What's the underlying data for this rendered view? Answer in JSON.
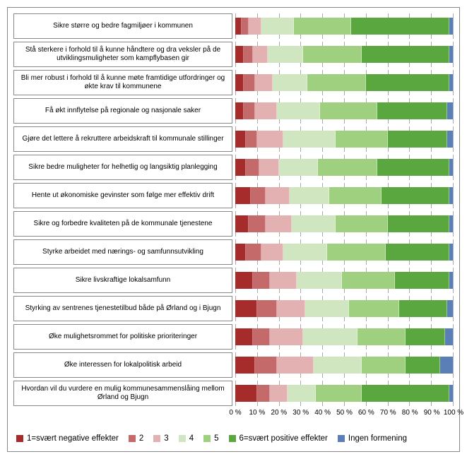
{
  "chart": {
    "type": "stacked-bar-horizontal",
    "xlim": [
      0,
      100
    ],
    "xtick_step": 10,
    "xtick_suffix": " %",
    "grid_color": "#aaaaaa",
    "background_color": "#ffffff",
    "label_fontsize_pt": 10,
    "colors": {
      "c1": "#a62b2b",
      "c2": "#c46a6a",
      "c3": "#e3b1b1",
      "c4": "#cfe6c1",
      "c5": "#9fd080",
      "c6": "#5aa73f",
      "c7": "#5a7fb7"
    },
    "series_order": [
      "c1",
      "c2",
      "c3",
      "c4",
      "c5",
      "c6",
      "c7"
    ],
    "rows": [
      {
        "label": "Sikre større og bedre fagmiljøer i kommunen",
        "values": {
          "c1": 3,
          "c2": 3,
          "c3": 6,
          "c4": 15,
          "c5": 26,
          "c6": 45,
          "c7": 2
        }
      },
      {
        "label": "Stå sterkere i forhold til å kunne håndtere og dra veksler på de utviklingsmuligheter som kampflybasen gir",
        "values": {
          "c1": 4,
          "c2": 4,
          "c3": 7,
          "c4": 16,
          "c5": 27,
          "c6": 40,
          "c7": 2
        }
      },
      {
        "label": "Bli mer robust i forhold til å kunne møte framtidige utfordringer og økte krav til kommunene",
        "values": {
          "c1": 4,
          "c2": 5,
          "c3": 8,
          "c4": 16,
          "c5": 27,
          "c6": 38,
          "c7": 2
        }
      },
      {
        "label": "Få økt innflytelse på regionale og nasjonale saker",
        "values": {
          "c1": 4,
          "c2": 5,
          "c3": 10,
          "c4": 20,
          "c5": 26,
          "c6": 32,
          "c7": 3
        }
      },
      {
        "label": "Gjøre det lettere å rekruttere arbeidskraft til kommunale stillinger",
        "values": {
          "c1": 5,
          "c2": 5,
          "c3": 12,
          "c4": 24,
          "c5": 24,
          "c6": 27,
          "c7": 3
        }
      },
      {
        "label": "Sikre bedre muligheter for helhetlig og langsiktig planlegging",
        "values": {
          "c1": 5,
          "c2": 6,
          "c3": 9,
          "c4": 18,
          "c5": 27,
          "c6": 33,
          "c7": 2
        }
      },
      {
        "label": "Hente ut økonomiske gevinster som følge mer effektiv drift",
        "values": {
          "c1": 7,
          "c2": 7,
          "c3": 11,
          "c4": 18,
          "c5": 24,
          "c6": 31,
          "c7": 2
        }
      },
      {
        "label": "Sikre og forbedre kvaliteten på de kommunale tjenestene",
        "values": {
          "c1": 6,
          "c2": 8,
          "c3": 12,
          "c4": 20,
          "c5": 24,
          "c6": 28,
          "c7": 2
        }
      },
      {
        "label": "Styrke arbeidet med nærings- og samfunnsutvikling",
        "values": {
          "c1": 5,
          "c2": 7,
          "c3": 10,
          "c4": 20,
          "c5": 27,
          "c6": 29,
          "c7": 2
        }
      },
      {
        "label": "Sikre livskraftige lokalsamfunn",
        "values": {
          "c1": 8,
          "c2": 8,
          "c3": 12,
          "c4": 21,
          "c5": 24,
          "c6": 25,
          "c7": 2
        }
      },
      {
        "label": "Styrking av sentrenes tjenestetilbud både på Ørland og i Bjugn",
        "values": {
          "c1": 10,
          "c2": 9,
          "c3": 13,
          "c4": 20,
          "c5": 23,
          "c6": 22,
          "c7": 3
        }
      },
      {
        "label": "Øke mulighetsrommet for politiske prioriteringer",
        "values": {
          "c1": 8,
          "c2": 8,
          "c3": 15,
          "c4": 25,
          "c5": 22,
          "c6": 18,
          "c7": 4
        }
      },
      {
        "label": "Øke interessen for lokalpolitisk arbeid",
        "values": {
          "c1": 9,
          "c2": 10,
          "c3": 17,
          "c4": 22,
          "c5": 20,
          "c6": 16,
          "c7": 6
        }
      },
      {
        "label": "Hvordan vil du vurdere en mulig kommunesammenslåing mellom Ørland og Bjugn",
        "values": {
          "c1": 10,
          "c2": 6,
          "c3": 8,
          "c4": 13,
          "c5": 21,
          "c6": 40,
          "c7": 2
        }
      }
    ],
    "legend": [
      {
        "key": "c1",
        "label": "1=svært negative effekter"
      },
      {
        "key": "c2",
        "label": "2"
      },
      {
        "key": "c3",
        "label": "3"
      },
      {
        "key": "c4",
        "label": "4"
      },
      {
        "key": "c5",
        "label": "5"
      },
      {
        "key": "c6",
        "label": "6=svært positive effekter"
      },
      {
        "key": "c7",
        "label": "Ingen formening"
      }
    ]
  }
}
